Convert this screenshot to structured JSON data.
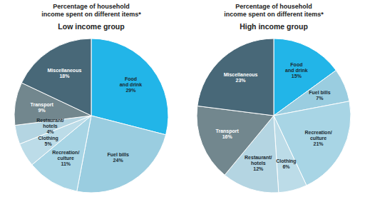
{
  "chart_data": [
    {
      "type": "pie",
      "title": "Percentage of household\nincome spent on different items*",
      "subtitle": "Low income group",
      "categories": [
        "Food\nand drink",
        "Fuel bills",
        "Recreation/\nculture",
        "Clothing",
        "Restaurant/\nhotels",
        "Transport",
        "Miscellaneous"
      ],
      "values": [
        29,
        24,
        11,
        5,
        4,
        9,
        18
      ],
      "value_labels": [
        "29%",
        "24%",
        "11%",
        "5%",
        "4%",
        "9%",
        "18%"
      ],
      "colors": [
        "#22b5e8",
        "#9acde0",
        "#a8d5e5",
        "#bcdce8",
        "#b4d5e2",
        "#72878e",
        "#486878"
      ],
      "data_labels": true
    },
    {
      "type": "pie",
      "title": "Percentage of household\nincome spent on different items*",
      "subtitle": "High income group",
      "categories": [
        "Food\nand drink",
        "Fuel bills",
        "Recreation/\nculture",
        "Clothing",
        "Restaurant/\nhotels",
        "Transport",
        "Miscellaneous"
      ],
      "values": [
        15,
        7,
        21,
        6,
        12,
        16,
        23
      ],
      "value_labels": [
        "15%",
        "7%",
        "21%",
        "6%",
        "12%",
        "16%",
        "23%"
      ],
      "colors": [
        "#22b5e8",
        "#9acde0",
        "#a8d5e5",
        "#bcdce8",
        "#b4d5e2",
        "#72878e",
        "#486878"
      ],
      "data_labels": true
    }
  ]
}
